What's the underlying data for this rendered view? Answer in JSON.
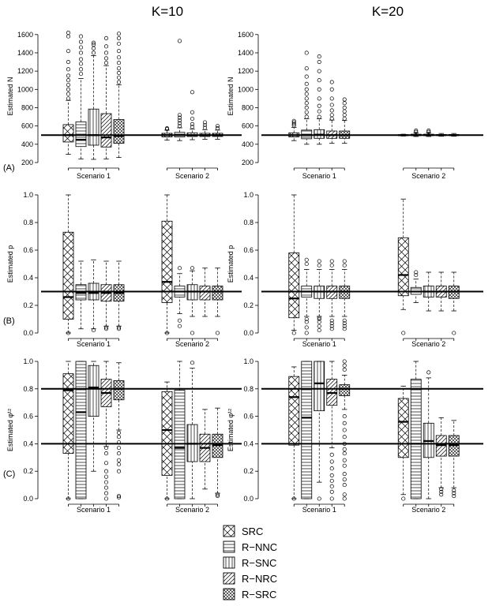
{
  "column_titles": [
    "K=10",
    "K=20"
  ],
  "row_labels": [
    "(A)",
    "(B)",
    "(C)"
  ],
  "legend": [
    "SRC",
    "R−NNC",
    "R−SNC",
    "R−NRC",
    "R−SRC"
  ],
  "colors": {
    "ink": "#000000",
    "background": "#ffffff"
  },
  "chart_data": [
    {
      "type": "box",
      "id": "A-K10",
      "ylabel": "Estimated N",
      "ylim": [
        200,
        1650
      ],
      "yticks": [
        200,
        400,
        600,
        800,
        1000,
        1200,
        1400,
        1600
      ],
      "yticklabels": [
        "200",
        "400",
        "600",
        "800",
        "1000",
        "1200",
        "1400",
        "1600"
      ],
      "reference_lines": [
        500
      ],
      "categories": [
        "Scenario 1",
        "Scenario 2"
      ],
      "groups": [
        [
          {
            "whisker_low": 290,
            "q1": 425,
            "median": 500,
            "q3": 615,
            "whisker_high": 880,
            "outliers": [
              900,
              950,
              1000,
              1050,
              1100,
              1150,
              1220,
              1300,
              1420,
              1580,
              1620
            ]
          },
          {
            "whisker_low": 240,
            "q1": 375,
            "median": 450,
            "q3": 645,
            "whisker_high": 1120,
            "outliers": [
              1170,
              1220,
              1280,
              1330,
              1400,
              1460,
              1520,
              1580
            ]
          },
          {
            "whisker_low": 235,
            "q1": 390,
            "median": 500,
            "q3": 785,
            "whisker_high": 1370,
            "outliers": [
              1400,
              1450,
              1490,
              1510
            ]
          },
          {
            "whisker_low": 240,
            "q1": 370,
            "median": 475,
            "q3": 735,
            "whisker_high": 1260,
            "outliers": [
              1290,
              1340,
              1400,
              1470,
              1560
            ]
          },
          {
            "whisker_low": 255,
            "q1": 410,
            "median": 490,
            "q3": 670,
            "whisker_high": 1050,
            "outliers": [
              1080,
              1130,
              1180,
              1230,
              1290,
              1350,
              1420,
              1500,
              1560,
              1610
            ]
          }
        ],
        [
          {
            "whisker_low": 445,
            "q1": 480,
            "median": 500,
            "q3": 520,
            "whisker_high": 555,
            "outliers": [
              565,
              575
            ]
          },
          {
            "whisker_low": 440,
            "q1": 480,
            "median": 500,
            "q3": 530,
            "whisker_high": 580,
            "outliers": [
              600,
              630,
              660,
              690,
              720,
              1530
            ]
          },
          {
            "whisker_low": 450,
            "q1": 485,
            "median": 500,
            "q3": 525,
            "whisker_high": 565,
            "outliers": [
              590,
              620,
              680,
              750,
              970
            ]
          },
          {
            "whisker_low": 455,
            "q1": 485,
            "median": 500,
            "q3": 520,
            "whisker_high": 560,
            "outliers": [
              580,
              610,
              640
            ]
          },
          {
            "whisker_low": 455,
            "q1": 485,
            "median": 500,
            "q3": 520,
            "whisker_high": 555,
            "outliers": [
              575,
              600
            ]
          }
        ]
      ]
    },
    {
      "type": "box",
      "id": "A-K20",
      "ylabel": "Estimated N",
      "ylim": [
        200,
        1650
      ],
      "yticks": [
        200,
        400,
        600,
        800,
        1000,
        1200,
        1400,
        1600
      ],
      "yticklabels": [
        "200",
        "400",
        "600",
        "800",
        "1000",
        "1200",
        "1400",
        "1600"
      ],
      "reference_lines": [
        500
      ],
      "categories": [
        "Scenario 1",
        "Scenario 2"
      ],
      "groups": [
        [
          {
            "whisker_low": 440,
            "q1": 480,
            "median": 500,
            "q3": 525,
            "whisker_high": 585,
            "outliers": [
              605,
              620,
              640,
              655
            ]
          },
          {
            "whisker_low": 400,
            "q1": 460,
            "median": 500,
            "q3": 555,
            "whisker_high": 680,
            "outliers": [
              700,
              750,
              800,
              850,
              900,
              950,
              1000,
              1060,
              1140,
              1230,
              1400
            ]
          },
          {
            "whisker_low": 400,
            "q1": 465,
            "median": 505,
            "q3": 560,
            "whisker_high": 680,
            "outliers": [
              700,
              760,
              820,
              900,
              1000,
              1100,
              1200,
              1300,
              1360
            ]
          },
          {
            "whisker_low": 410,
            "q1": 465,
            "median": 500,
            "q3": 545,
            "whisker_high": 665,
            "outliers": [
              680,
              720,
              770,
              830,
              900,
              1000,
              1080
            ]
          },
          {
            "whisker_low": 410,
            "q1": 465,
            "median": 500,
            "q3": 545,
            "whisker_high": 660,
            "outliers": [
              680,
              720,
              760,
              800,
              850,
              890
            ]
          }
        ],
        [
          {
            "whisker_low": 490,
            "q1": 497,
            "median": 500,
            "q3": 503,
            "whisker_high": 510,
            "outliers": []
          },
          {
            "whisker_low": 485,
            "q1": 495,
            "median": 500,
            "q3": 510,
            "whisker_high": 525,
            "outliers": [
              535,
              550
            ]
          },
          {
            "whisker_low": 485,
            "q1": 495,
            "median": 500,
            "q3": 510,
            "whisker_high": 525,
            "outliers": [
              535,
              550
            ]
          },
          {
            "whisker_low": 488,
            "q1": 496,
            "median": 500,
            "q3": 506,
            "whisker_high": 518,
            "outliers": []
          },
          {
            "whisker_low": 488,
            "q1": 496,
            "median": 500,
            "q3": 506,
            "whisker_high": 518,
            "outliers": []
          }
        ]
      ]
    },
    {
      "type": "box",
      "id": "B-K10",
      "ylabel": "Estimated p",
      "ylim": [
        0,
        1
      ],
      "yticks": [
        0,
        0.2,
        0.4,
        0.6,
        0.8,
        1
      ],
      "yticklabels": [
        "0.0",
        "0.2",
        "0.4",
        "0.6",
        "0.8",
        "1.0"
      ],
      "reference_lines": [
        0.3
      ],
      "categories": [
        "Scenario 1",
        "Scenario 2"
      ],
      "groups": [
        [
          {
            "whisker_low": 0.0,
            "q1": 0.1,
            "median": 0.26,
            "q3": 0.73,
            "whisker_high": 1.0,
            "outliers": [
              0.0
            ]
          },
          {
            "whisker_low": 0.03,
            "q1": 0.24,
            "median": 0.29,
            "q3": 0.35,
            "whisker_high": 0.52,
            "outliers": []
          },
          {
            "whisker_low": 0.03,
            "q1": 0.24,
            "median": 0.29,
            "q3": 0.36,
            "whisker_high": 0.53,
            "outliers": [
              0.02
            ]
          },
          {
            "whisker_low": 0.05,
            "q1": 0.23,
            "median": 0.29,
            "q3": 0.35,
            "whisker_high": 0.52,
            "outliers": [
              0.03,
              0.04
            ]
          },
          {
            "whisker_low": 0.05,
            "q1": 0.23,
            "median": 0.29,
            "q3": 0.35,
            "whisker_high": 0.52,
            "outliers": [
              0.03,
              0.04
            ]
          }
        ],
        [
          {
            "whisker_low": 0.0,
            "q1": 0.22,
            "median": 0.37,
            "q3": 0.81,
            "whisker_high": 1.0,
            "outliers": [
              0.0
            ]
          },
          {
            "whisker_low": 0.14,
            "q1": 0.26,
            "median": 0.3,
            "q3": 0.34,
            "whisker_high": 0.43,
            "outliers": [
              0.05,
              0.09,
              0.47
            ]
          },
          {
            "whisker_low": 0.12,
            "q1": 0.24,
            "median": 0.3,
            "q3": 0.35,
            "whisker_high": 0.45,
            "outliers": [
              0.0,
              0.47
            ]
          },
          {
            "whisker_low": 0.12,
            "q1": 0.24,
            "median": 0.3,
            "q3": 0.34,
            "whisker_high": 0.47,
            "outliers": []
          },
          {
            "whisker_low": 0.12,
            "q1": 0.24,
            "median": 0.3,
            "q3": 0.34,
            "whisker_high": 0.47,
            "outliers": [
              0.0
            ]
          }
        ]
      ]
    },
    {
      "type": "box",
      "id": "B-K20",
      "ylabel": "Estimated p",
      "ylim": [
        0,
        1
      ],
      "yticks": [
        0,
        0.2,
        0.4,
        0.6,
        0.8,
        1
      ],
      "yticklabels": [
        "0.0",
        "0.2",
        "0.4",
        "0.6",
        "0.8",
        "1.0"
      ],
      "reference_lines": [
        0.3
      ],
      "categories": [
        "Scenario 1",
        "Scenario 2"
      ],
      "groups": [
        [
          {
            "whisker_low": 0.02,
            "q1": 0.11,
            "median": 0.25,
            "q3": 0.58,
            "whisker_high": 1.0,
            "outliers": [
              0.0
            ]
          },
          {
            "whisker_low": 0.12,
            "q1": 0.26,
            "median": 0.3,
            "q3": 0.34,
            "whisker_high": 0.46,
            "outliers": [
              0.0,
              0.04,
              0.08,
              0.1,
              0.5,
              0.53
            ]
          },
          {
            "whisker_low": 0.12,
            "q1": 0.25,
            "median": 0.3,
            "q3": 0.34,
            "whisker_high": 0.46,
            "outliers": [
              0.02,
              0.05,
              0.08,
              0.1,
              0.11,
              0.49,
              0.52
            ]
          },
          {
            "whisker_low": 0.12,
            "q1": 0.25,
            "median": 0.3,
            "q3": 0.34,
            "whisker_high": 0.46,
            "outliers": [
              0.03,
              0.05,
              0.07,
              0.09,
              0.49,
              0.52
            ]
          },
          {
            "whisker_low": 0.12,
            "q1": 0.25,
            "median": 0.3,
            "q3": 0.34,
            "whisker_high": 0.46,
            "outliers": [
              0.03,
              0.05,
              0.07,
              0.09,
              0.49,
              0.52
            ]
          }
        ],
        [
          {
            "whisker_low": 0.17,
            "q1": 0.27,
            "median": 0.42,
            "q3": 0.69,
            "whisker_high": 0.97,
            "outliers": [
              0.0
            ]
          },
          {
            "whisker_low": 0.22,
            "q1": 0.28,
            "median": 0.3,
            "q3": 0.33,
            "whisker_high": 0.39,
            "outliers": [
              0.42,
              0.44
            ]
          },
          {
            "whisker_low": 0.16,
            "q1": 0.26,
            "median": 0.3,
            "q3": 0.34,
            "whisker_high": 0.44,
            "outliers": []
          },
          {
            "whisker_low": 0.16,
            "q1": 0.26,
            "median": 0.3,
            "q3": 0.34,
            "whisker_high": 0.44,
            "outliers": []
          },
          {
            "whisker_low": 0.16,
            "q1": 0.25,
            "median": 0.3,
            "q3": 0.34,
            "whisker_high": 0.44,
            "outliers": [
              0.0
            ]
          }
        ]
      ]
    },
    {
      "type": "box",
      "id": "C-K10",
      "ylabel": "Estimated φ¹²",
      "ylim": [
        0,
        1
      ],
      "yticks": [
        0,
        0.2,
        0.4,
        0.6,
        0.8,
        1
      ],
      "yticklabels": [
        "0.0",
        "0.2",
        "0.4",
        "0.6",
        "0.8",
        "1.0"
      ],
      "reference_lines": [
        0.8,
        0.4
      ],
      "categories": [
        "Scenario 1",
        "Scenario 2"
      ],
      "groups": [
        [
          {
            "whisker_low": 0.0,
            "q1": 0.33,
            "median": 0.79,
            "q3": 0.91,
            "whisker_high": 1.0,
            "outliers": [
              0.0
            ]
          },
          {
            "whisker_low": 0.0,
            "q1": 0.0,
            "median": 0.63,
            "q3": 1.0,
            "whisker_high": 1.0,
            "outliers": []
          },
          {
            "whisker_low": 0.2,
            "q1": 0.6,
            "median": 0.81,
            "q3": 0.97,
            "whisker_high": 1.0,
            "outliers": []
          },
          {
            "whisker_low": 0.38,
            "q1": 0.67,
            "median": 0.77,
            "q3": 0.87,
            "whisker_high": 1.0,
            "outliers": [
              0.0,
              0.04,
              0.08,
              0.12,
              0.16,
              0.2,
              0.26,
              0.33,
              0.37
            ]
          },
          {
            "whisker_low": 0.5,
            "q1": 0.72,
            "median": 0.8,
            "q3": 0.86,
            "whisker_high": 0.99,
            "outliers": [
              0.01,
              0.02,
              0.2,
              0.25,
              0.28,
              0.33,
              0.37,
              0.41,
              0.45,
              0.48
            ]
          }
        ],
        [
          {
            "whisker_low": 0.0,
            "q1": 0.17,
            "median": 0.5,
            "q3": 0.78,
            "whisker_high": 0.85,
            "outliers": [
              0.0
            ]
          },
          {
            "whisker_low": 0.0,
            "q1": 0.0,
            "median": 0.37,
            "q3": 0.79,
            "whisker_high": 1.0,
            "outliers": []
          },
          {
            "whisker_low": 0.0,
            "q1": 0.27,
            "median": 0.4,
            "q3": 0.54,
            "whisker_high": 0.95,
            "outliers": [
              0.99
            ]
          },
          {
            "whisker_low": 0.07,
            "q1": 0.27,
            "median": 0.37,
            "q3": 0.47,
            "whisker_high": 0.65,
            "outliers": []
          },
          {
            "whisker_low": 0.04,
            "q1": 0.3,
            "median": 0.39,
            "q3": 0.47,
            "whisker_high": 0.66,
            "outliers": [
              0.02,
              0.03
            ]
          }
        ]
      ]
    },
    {
      "type": "box",
      "id": "C-K20",
      "ylabel": "Estimated φ¹²",
      "ylim": [
        0,
        1
      ],
      "yticks": [
        0,
        0.2,
        0.4,
        0.6,
        0.8,
        1
      ],
      "yticklabels": [
        "0.0",
        "0.2",
        "0.4",
        "0.6",
        "0.8",
        "1.0"
      ],
      "reference_lines": [
        0.8,
        0.4
      ],
      "categories": [
        "Scenario 1",
        "Scenario 2"
      ],
      "groups": [
        [
          {
            "whisker_low": 0.0,
            "q1": 0.39,
            "median": 0.74,
            "q3": 0.89,
            "whisker_high": 0.96,
            "outliers": [
              0.0
            ]
          },
          {
            "whisker_low": 0.0,
            "q1": 0.0,
            "median": 0.59,
            "q3": 1.0,
            "whisker_high": 1.0,
            "outliers": []
          },
          {
            "whisker_low": 0.12,
            "q1": 0.64,
            "median": 0.84,
            "q3": 1.0,
            "whisker_high": 1.0,
            "outliers": [
              0.0
            ]
          },
          {
            "whisker_low": 0.37,
            "q1": 0.68,
            "median": 0.77,
            "q3": 0.87,
            "whisker_high": 1.0,
            "outliers": [
              0.0,
              0.05,
              0.09,
              0.13,
              0.17,
              0.22,
              0.27,
              0.32
            ]
          },
          {
            "whisker_low": 0.65,
            "q1": 0.75,
            "median": 0.8,
            "q3": 0.83,
            "whisker_high": 0.9,
            "outliers": [
              0.0,
              0.03,
              0.1,
              0.14,
              0.18,
              0.24,
              0.28,
              0.33,
              0.36,
              0.4,
              0.45,
              0.5,
              0.55,
              0.6,
              0.94,
              0.97,
              1.0
            ]
          }
        ],
        [
          {
            "whisker_low": 0.03,
            "q1": 0.3,
            "median": 0.56,
            "q3": 0.73,
            "whisker_high": 0.82,
            "outliers": [
              0.0
            ]
          },
          {
            "whisker_low": 0.0,
            "q1": 0.0,
            "median": 0.4,
            "q3": 0.87,
            "whisker_high": 1.0,
            "outliers": []
          },
          {
            "whisker_low": 0.0,
            "q1": 0.3,
            "median": 0.42,
            "q3": 0.55,
            "whisker_high": 0.88,
            "outliers": [
              0.92
            ]
          },
          {
            "whisker_low": 0.08,
            "q1": 0.31,
            "median": 0.39,
            "q3": 0.46,
            "whisker_high": 0.59,
            "outliers": [
              0.03,
              0.05,
              0.07
            ]
          },
          {
            "whisker_low": 0.08,
            "q1": 0.31,
            "median": 0.39,
            "q3": 0.46,
            "whisker_high": 0.57,
            "outliers": [
              0.02,
              0.04,
              0.06
            ]
          }
        ]
      ]
    }
  ]
}
